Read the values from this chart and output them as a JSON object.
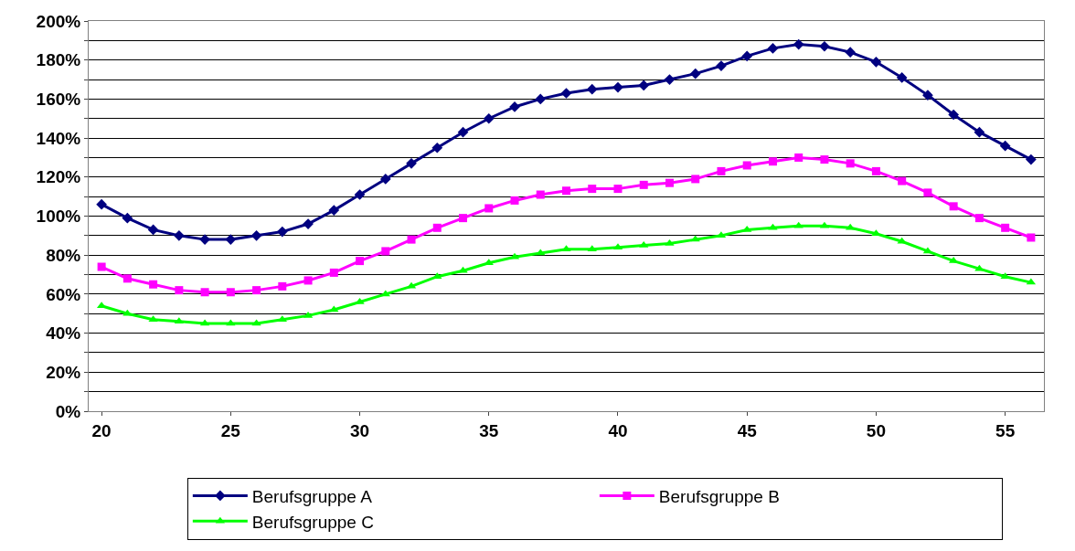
{
  "chart_data": {
    "type": "line",
    "x": [
      20,
      21,
      22,
      23,
      24,
      25,
      26,
      27,
      28,
      29,
      30,
      31,
      32,
      33,
      34,
      35,
      36,
      37,
      38,
      39,
      40,
      41,
      42,
      43,
      44,
      45,
      46,
      47,
      48,
      49,
      50,
      51,
      52,
      53,
      54,
      55,
      56
    ],
    "series": [
      {
        "name": "Berufsgruppe A",
        "color": "#000080",
        "marker": "diamond",
        "values": [
          106,
          99,
          93,
          90,
          88,
          88,
          90,
          92,
          96,
          103,
          111,
          119,
          127,
          135,
          143,
          150,
          156,
          160,
          163,
          165,
          166,
          167,
          170,
          173,
          177,
          182,
          186,
          188,
          187,
          184,
          179,
          171,
          162,
          152,
          143,
          136,
          129
        ]
      },
      {
        "name": "Berufsgruppe B",
        "color": "#ff00ff",
        "marker": "square",
        "values": [
          74,
          68,
          65,
          62,
          61,
          61,
          62,
          64,
          67,
          71,
          77,
          82,
          88,
          94,
          99,
          104,
          108,
          111,
          113,
          114,
          114,
          116,
          117,
          119,
          123,
          126,
          128,
          130,
          129,
          127,
          123,
          118,
          112,
          105,
          99,
          94,
          89
        ]
      },
      {
        "name": "Berufsgruppe C",
        "color": "#00ff00",
        "marker": "triangle",
        "values": [
          54,
          50,
          47,
          46,
          45,
          45,
          45,
          47,
          49,
          52,
          56,
          60,
          64,
          69,
          72,
          76,
          79,
          81,
          83,
          83,
          84,
          85,
          86,
          88,
          90,
          93,
          94,
          95,
          95,
          94,
          91,
          87,
          82,
          77,
          73,
          69,
          66
        ]
      }
    ],
    "xlim": [
      19.5,
      56.5
    ],
    "xticks": [
      20,
      25,
      30,
      35,
      40,
      45,
      50,
      55
    ],
    "ylim": [
      0,
      200
    ],
    "yticks": [
      {
        "value": 0,
        "label": "0%"
      },
      {
        "value": 10,
        "label": null
      },
      {
        "value": 20,
        "label": "20%"
      },
      {
        "value": 30,
        "label": null
      },
      {
        "value": 40,
        "label": "40%"
      },
      {
        "value": 50,
        "label": null
      },
      {
        "value": 60,
        "label": "60%"
      },
      {
        "value": 70,
        "label": null
      },
      {
        "value": 80,
        "label": "80%"
      },
      {
        "value": 90,
        "label": null
      },
      {
        "value": 100,
        "label": "100%"
      },
      {
        "value": 110,
        "label": null
      },
      {
        "value": 120,
        "label": "120%"
      },
      {
        "value": 130,
        "label": null
      },
      {
        "value": 140,
        "label": "140%"
      },
      {
        "value": 150,
        "label": null
      },
      {
        "value": 160,
        "label": "160%"
      },
      {
        "value": 170,
        "label": null
      },
      {
        "value": 180,
        "label": "180%"
      },
      {
        "value": 190,
        "label": null
      },
      {
        "value": 200,
        "label": "200%"
      }
    ],
    "grid": "y",
    "legend": "bottom",
    "line_style": "solid"
  }
}
